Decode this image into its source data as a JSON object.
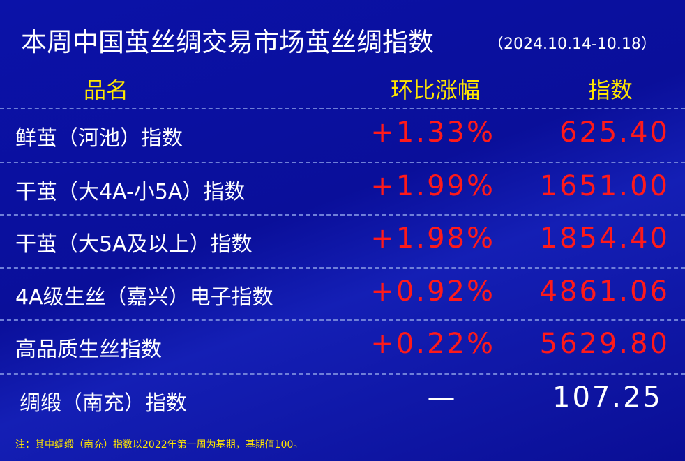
{
  "header": {
    "title": "本周中国茧丝绸交易市场茧丝绸指数",
    "date_range": "（2024.10.14-10.18）"
  },
  "table": {
    "columns": [
      "品名",
      "环比涨幅",
      "指数"
    ],
    "rows": [
      [
        "鲜茧（河池）指数",
        "+1.33%",
        "625.40"
      ],
      [
        "干茧（大4A-小5A）指数",
        "+1.99%",
        "1651.00"
      ],
      [
        "干茧（大5A及以上）指数",
        "+1.98%",
        "1854.40"
      ],
      [
        "4A级生丝（嘉兴）电子指数",
        "+0.92%",
        "4861.06"
      ],
      [
        "高品质生丝指数",
        "+0.22%",
        "5629.80"
      ],
      [
        "绸缎（南充）指数",
        "—",
        "107.25"
      ]
    ]
  },
  "footer": {
    "note": "注：其中绸缎（南充）指数以2022年第一周为基期，基期值100。"
  }
}
